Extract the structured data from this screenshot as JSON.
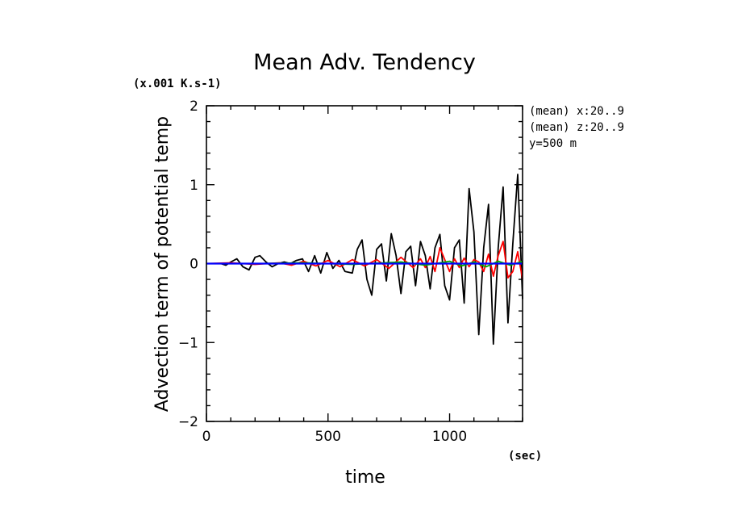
{
  "chart_data": {
    "type": "line",
    "title": "Mean Adv. Tendency",
    "xlabel": "time",
    "ylabel": "Advection term of potential temp",
    "x_unit": "(sec)",
    "y_unit": "(x.001 K.s-1)",
    "xlim": [
      0,
      1300
    ],
    "ylim": [
      -2,
      2
    ],
    "x_ticks": [
      0,
      500,
      1000
    ],
    "y_ticks": [
      -2,
      -1,
      0,
      1,
      2
    ],
    "grid": false,
    "annotations": [
      "(mean) x:20..9",
      "(mean) z:20..9",
      "y=500 m"
    ],
    "series": [
      {
        "color": "#000000",
        "x": [
          0,
          60,
          80,
          100,
          125,
          150,
          175,
          200,
          220,
          245,
          270,
          295,
          320,
          345,
          370,
          395,
          420,
          445,
          470,
          495,
          520,
          545,
          570,
          600,
          620,
          640,
          660,
          680,
          700,
          720,
          740,
          760,
          780,
          800,
          820,
          840,
          860,
          880,
          900,
          920,
          940,
          960,
          980,
          1000,
          1020,
          1040,
          1060,
          1080,
          1100,
          1120,
          1140,
          1160,
          1180,
          1200,
          1220,
          1240,
          1260,
          1280,
          1300
        ],
        "values": [
          0.0,
          0.0,
          -0.02,
          0.02,
          0.06,
          -0.04,
          -0.08,
          0.08,
          0.1,
          0.02,
          -0.04,
          0.0,
          0.02,
          0.0,
          0.04,
          0.06,
          -0.1,
          0.1,
          -0.12,
          0.14,
          -0.06,
          0.04,
          -0.1,
          -0.12,
          0.18,
          0.3,
          -0.2,
          -0.4,
          0.18,
          0.25,
          -0.22,
          0.38,
          0.1,
          -0.38,
          0.15,
          0.22,
          -0.28,
          0.28,
          0.1,
          -0.32,
          0.2,
          0.37,
          -0.28,
          -0.46,
          0.2,
          0.3,
          -0.5,
          0.95,
          0.4,
          -0.9,
          0.2,
          0.75,
          -1.02,
          0.2,
          0.97,
          -0.75,
          0.25,
          1.13,
          -0.45
        ]
      },
      {
        "color": "#ff0000",
        "x": [
          0,
          100,
          200,
          300,
          350,
          400,
          450,
          500,
          550,
          600,
          650,
          700,
          750,
          800,
          850,
          880,
          900,
          920,
          940,
          960,
          980,
          1000,
          1020,
          1040,
          1060,
          1080,
          1100,
          1120,
          1140,
          1160,
          1180,
          1200,
          1220,
          1240,
          1260,
          1280,
          1300
        ],
        "values": [
          0.0,
          0.01,
          -0.01,
          0.01,
          -0.02,
          0.03,
          -0.03,
          0.04,
          -0.04,
          0.05,
          -0.03,
          0.05,
          -0.06,
          0.08,
          -0.05,
          0.06,
          -0.05,
          0.09,
          -0.1,
          0.2,
          0.05,
          -0.1,
          0.06,
          -0.05,
          0.07,
          -0.04,
          0.05,
          0.02,
          -0.1,
          0.12,
          -0.16,
          0.1,
          0.28,
          -0.18,
          -0.1,
          0.15,
          -0.2
        ]
      },
      {
        "color": "#00aa00",
        "x": [
          0,
          200,
          400,
          600,
          800,
          900,
          1000,
          1050,
          1100,
          1150,
          1200,
          1250,
          1300
        ],
        "values": [
          0.0,
          0.0,
          0.01,
          -0.01,
          0.02,
          -0.02,
          0.03,
          -0.03,
          0.02,
          -0.04,
          0.03,
          -0.02,
          0.03
        ]
      },
      {
        "color": "#0000ff",
        "x": [
          0,
          1300
        ],
        "values": [
          0.0,
          0.0
        ]
      }
    ]
  }
}
